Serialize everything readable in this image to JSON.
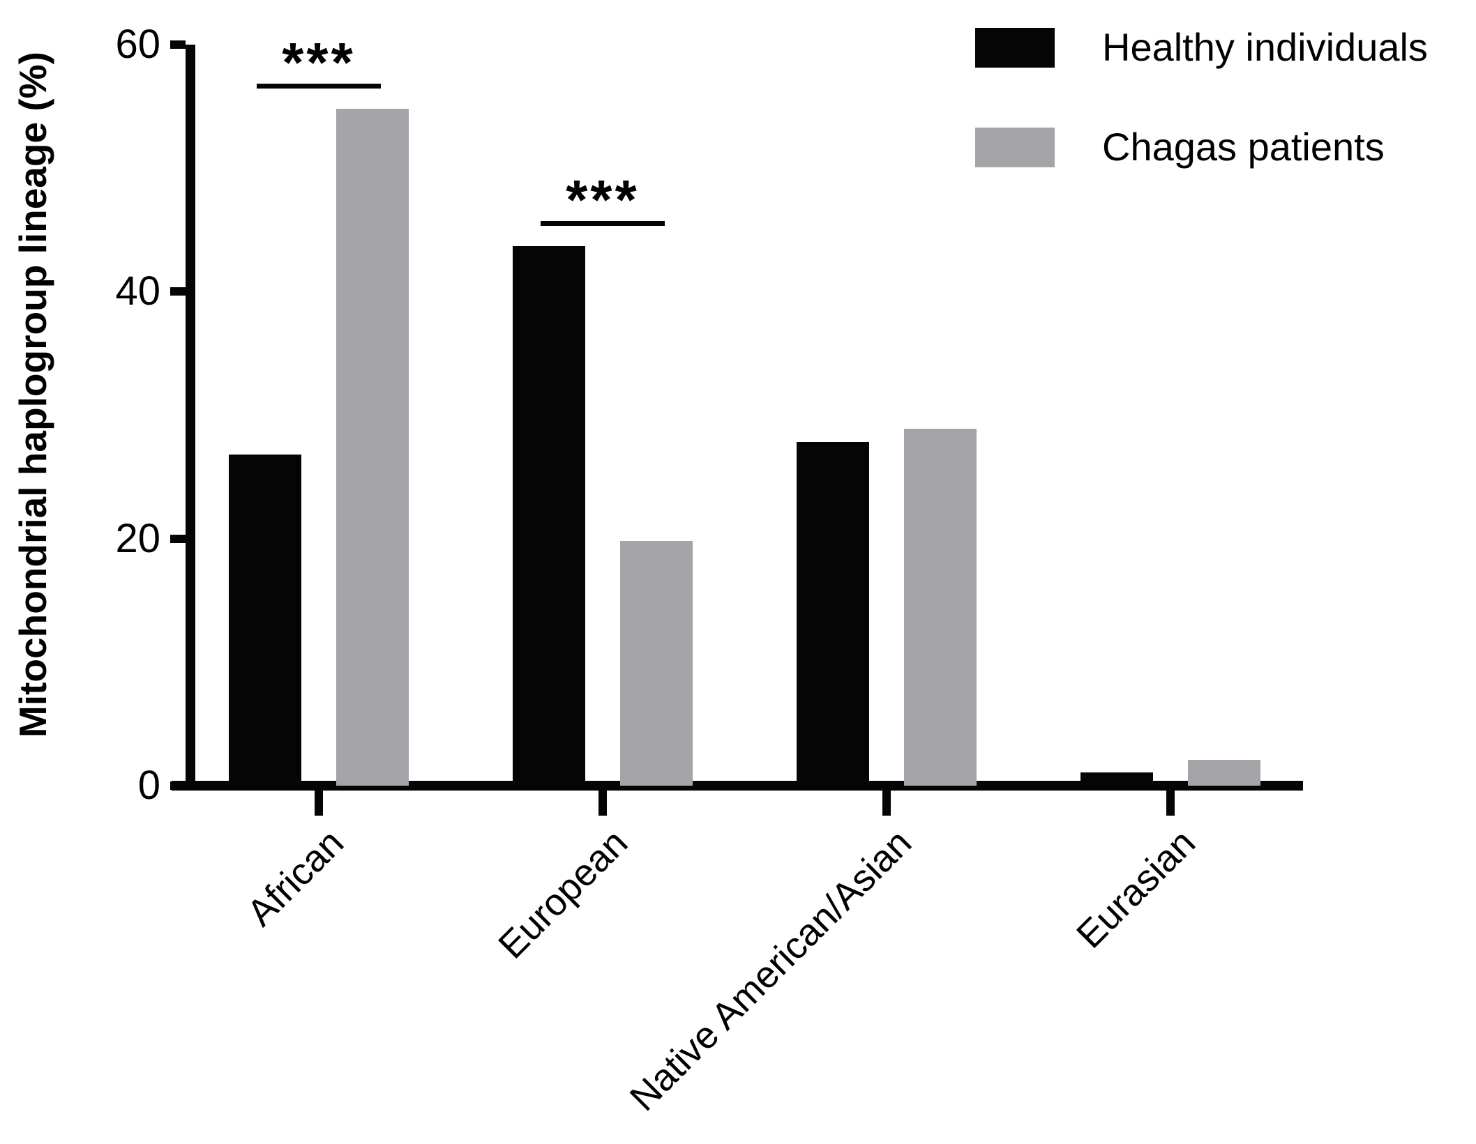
{
  "chart_data": {
    "type": "bar",
    "title": "",
    "ylabel": "Mitochondrial haplogroup lineage (%)",
    "xlabel": "",
    "categories": [
      "African",
      "European",
      "Native American/Asian",
      "Eurasian"
    ],
    "series": [
      {
        "name": "Healthy individuals",
        "color": "#050505",
        "values": [
          26.8,
          43.7,
          27.8,
          1.1
        ]
      },
      {
        "name": "Chagas patients",
        "color": "#a5a5a9",
        "values": [
          54.8,
          19.8,
          28.9,
          2.1
        ]
      }
    ],
    "ylim": [
      0,
      60
    ],
    "yticks": [
      0,
      20,
      40,
      60
    ],
    "grid": false,
    "legend_position": "top-right",
    "significance": [
      {
        "category": "African",
        "label": "***"
      },
      {
        "category": "European",
        "label": "***"
      }
    ]
  }
}
